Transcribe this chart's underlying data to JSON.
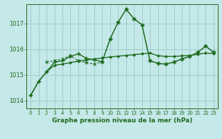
{
  "background_color": "#c5e8e8",
  "grid_color": "#9ecece",
  "line_color": "#1e6b1e",
  "title": "Graphe pression niveau de la mer (hPa)",
  "ylim": [
    1013.7,
    1017.75
  ],
  "xlim": [
    -0.5,
    23.5
  ],
  "yticks": [
    1014,
    1015,
    1016,
    1017
  ],
  "xticks": [
    0,
    1,
    2,
    3,
    4,
    5,
    6,
    7,
    8,
    9,
    10,
    11,
    12,
    13,
    14,
    15,
    16,
    17,
    18,
    19,
    20,
    21,
    22,
    23
  ],
  "line_trend_x": [
    0,
    1,
    2,
    3,
    4,
    5,
    6,
    7,
    8,
    9,
    10,
    11,
    12,
    13,
    14,
    15,
    16,
    17,
    18,
    19,
    20,
    21,
    22,
    23
  ],
  "line_trend_y": [
    1014.2,
    1014.75,
    1015.12,
    1015.38,
    1015.42,
    1015.48,
    1015.54,
    1015.58,
    1015.62,
    1015.66,
    1015.7,
    1015.73,
    1015.76,
    1015.79,
    1015.82,
    1015.85,
    1015.75,
    1015.72,
    1015.72,
    1015.74,
    1015.76,
    1015.8,
    1015.85,
    1015.83
  ],
  "line_peak_x": [
    0,
    1,
    2,
    3,
    4,
    5,
    6,
    7,
    8,
    9,
    10,
    11,
    12,
    13,
    14,
    15,
    16,
    17,
    18,
    19,
    20,
    21,
    22,
    23
  ],
  "line_peak_y": [
    1014.2,
    1014.75,
    1015.12,
    1015.5,
    1015.55,
    1015.72,
    1015.82,
    1015.65,
    1015.58,
    1015.52,
    1016.4,
    1017.05,
    1017.55,
    1017.18,
    1016.95,
    1015.55,
    1015.45,
    1015.42,
    1015.5,
    1015.62,
    1015.72,
    1015.88,
    1016.12,
    1015.88
  ],
  "line_dash_x": [
    2,
    3,
    4,
    5,
    6,
    7,
    8,
    9,
    10,
    11,
    12,
    13,
    14,
    15,
    16,
    17,
    18,
    19,
    20,
    21,
    22,
    23
  ],
  "line_dash_y": [
    1015.5,
    1015.55,
    1015.62,
    1015.75,
    1015.55,
    1015.48,
    1015.42,
    1015.52,
    1016.4,
    1017.05,
    1017.55,
    1017.18,
    1016.95,
    1015.55,
    1015.45,
    1015.42,
    1015.5,
    1015.62,
    1015.72,
    1015.88,
    1016.12,
    1015.88
  ]
}
